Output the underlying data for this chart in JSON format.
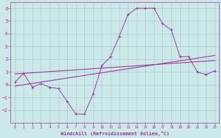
{
  "x": [
    0,
    1,
    2,
    3,
    4,
    5,
    6,
    7,
    8,
    9,
    10,
    11,
    12,
    13,
    14,
    15,
    16,
    17,
    18,
    19,
    20,
    21,
    22,
    23
  ],
  "windchill": [
    0.2,
    0.9,
    -0.2,
    0.1,
    -0.2,
    -0.3,
    -1.3,
    -2.3,
    -2.3,
    -0.7,
    1.5,
    2.2,
    3.8,
    5.5,
    6.0,
    6.0,
    6.0,
    4.8,
    4.3,
    2.2,
    2.2,
    1.0,
    0.8,
    1.1
  ],
  "reg_line1_y": [
    -0.1,
    2.3
  ],
  "reg_line2_y": [
    0.85,
    1.9
  ],
  "background_color": "#cce8e8",
  "grid_color": "#aacccc",
  "line_color": "#993399",
  "ylim": [
    -3,
    6.5
  ],
  "xlim": [
    -0.5,
    23.5
  ],
  "yticks": [
    -2,
    -1,
    0,
    1,
    2,
    3,
    4,
    5,
    6
  ],
  "xticks": [
    0,
    1,
    2,
    3,
    4,
    5,
    6,
    7,
    8,
    9,
    10,
    11,
    12,
    13,
    14,
    15,
    16,
    17,
    18,
    19,
    20,
    21,
    22,
    23
  ],
  "xlabel": "Windchill (Refroidissement éolien,°C)"
}
